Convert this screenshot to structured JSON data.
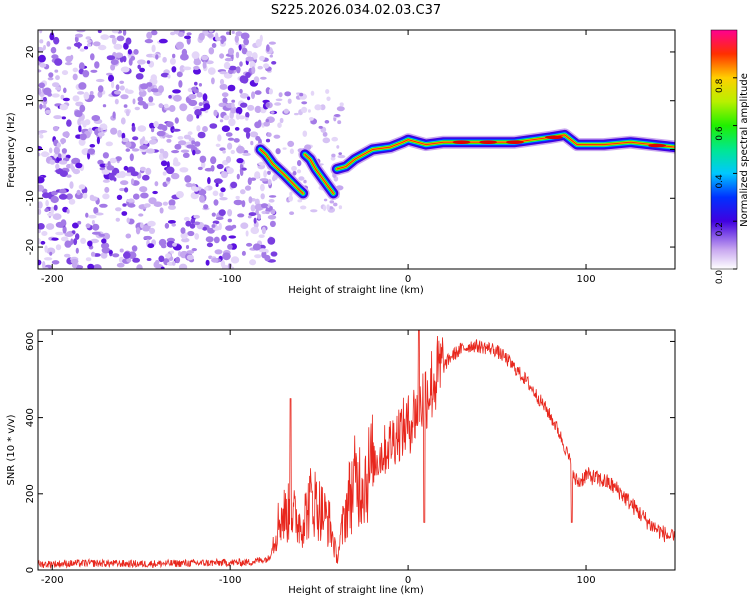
{
  "figure_title": "S225.2026.034.02.03.C37",
  "chart_data": [
    {
      "type": "heatmap",
      "title": "S225.2026.034.02.03.C37",
      "xlabel": "Height of straight line (km)",
      "ylabel": "Frequency (Hz)",
      "xlim": [
        -208,
        150
      ],
      "ylim": [
        -24.5,
        24.5
      ],
      "xticks": [
        -200,
        -100,
        0,
        100
      ],
      "yticks": [
        -20,
        -10,
        0,
        10,
        20
      ],
      "colorbar": {
        "label": "Normalized spectral amplitude",
        "range": [
          0,
          1
        ],
        "ticks": [
          0.0,
          0.2,
          0.4,
          0.6,
          0.8
        ],
        "tick_labels": [
          "0.0",
          "0.2",
          "0.4",
          "0.6",
          "0.8"
        ]
      },
      "noise_region_km": [
        -208,
        -82
      ],
      "ridge": [
        {
          "x": -83,
          "y": 0
        },
        {
          "x": -80,
          "y": -1
        },
        {
          "x": -76,
          "y": -3
        },
        {
          "x": -70,
          "y": -5
        },
        {
          "x": -66,
          "y": -6.5
        },
        {
          "x": -62,
          "y": -8
        },
        {
          "x": -59,
          "y": -9
        },
        {
          "x": -58,
          "y": -1
        },
        {
          "x": -55,
          "y": -2
        },
        {
          "x": -52,
          "y": -4
        },
        {
          "x": -48,
          "y": -6
        },
        {
          "x": -45,
          "y": -7.5
        },
        {
          "x": -42,
          "y": -9
        },
        {
          "x": -40,
          "y": -4
        },
        {
          "x": -35,
          "y": -3.5
        },
        {
          "x": -30,
          "y": -2
        },
        {
          "x": -25,
          "y": -1
        },
        {
          "x": -20,
          "y": 0
        },
        {
          "x": -10,
          "y": 0.5
        },
        {
          "x": -3,
          "y": 1.5
        },
        {
          "x": 0,
          "y": 2
        },
        {
          "x": 10,
          "y": 1
        },
        {
          "x": 20,
          "y": 1.5
        },
        {
          "x": 40,
          "y": 1.5
        },
        {
          "x": 60,
          "y": 1.5
        },
        {
          "x": 80,
          "y": 2.5
        },
        {
          "x": 88,
          "y": 3
        },
        {
          "x": 95,
          "y": 1
        },
        {
          "x": 110,
          "y": 1
        },
        {
          "x": 125,
          "y": 1.5
        },
        {
          "x": 150,
          "y": 0.5
        }
      ]
    },
    {
      "type": "line",
      "xlabel": "Height of straight line (km)",
      "ylabel": "SNR (10 * v/v)",
      "xlim": [
        -208,
        150
      ],
      "ylim": [
        0,
        630
      ],
      "xticks": [
        -200,
        -100,
        0,
        100
      ],
      "yticks": [
        0,
        200,
        400,
        600
      ],
      "color": "#e8271d",
      "series": [
        {
          "name": "SNR",
          "x": [
            -208,
            -180,
            -150,
            -120,
            -90,
            -78,
            -72,
            -66,
            -60,
            -54,
            -48,
            -44,
            -40,
            -34,
            -30,
            -24,
            -18,
            -12,
            -6,
            0,
            6,
            12,
            18,
            24,
            30,
            36,
            42,
            48,
            54,
            60,
            66,
            72,
            78,
            84,
            90,
            93,
            96,
            100,
            106,
            112,
            118,
            124,
            130,
            136,
            142,
            150
          ],
          "values": [
            15,
            18,
            16,
            18,
            20,
            30,
            140,
            150,
            120,
            190,
            150,
            120,
            30,
            180,
            230,
            240,
            290,
            320,
            360,
            380,
            430,
            480,
            520,
            560,
            580,
            590,
            585,
            580,
            560,
            530,
            500,
            460,
            420,
            370,
            300,
            240,
            230,
            250,
            240,
            230,
            210,
            180,
            150,
            120,
            100,
            80
          ]
        }
      ],
      "peaks": [
        {
          "x": -66,
          "y": 450
        },
        {
          "x": 6,
          "y": 630
        },
        {
          "x": 9,
          "y": 125
        },
        {
          "x": 92,
          "y": 125
        }
      ]
    }
  ]
}
